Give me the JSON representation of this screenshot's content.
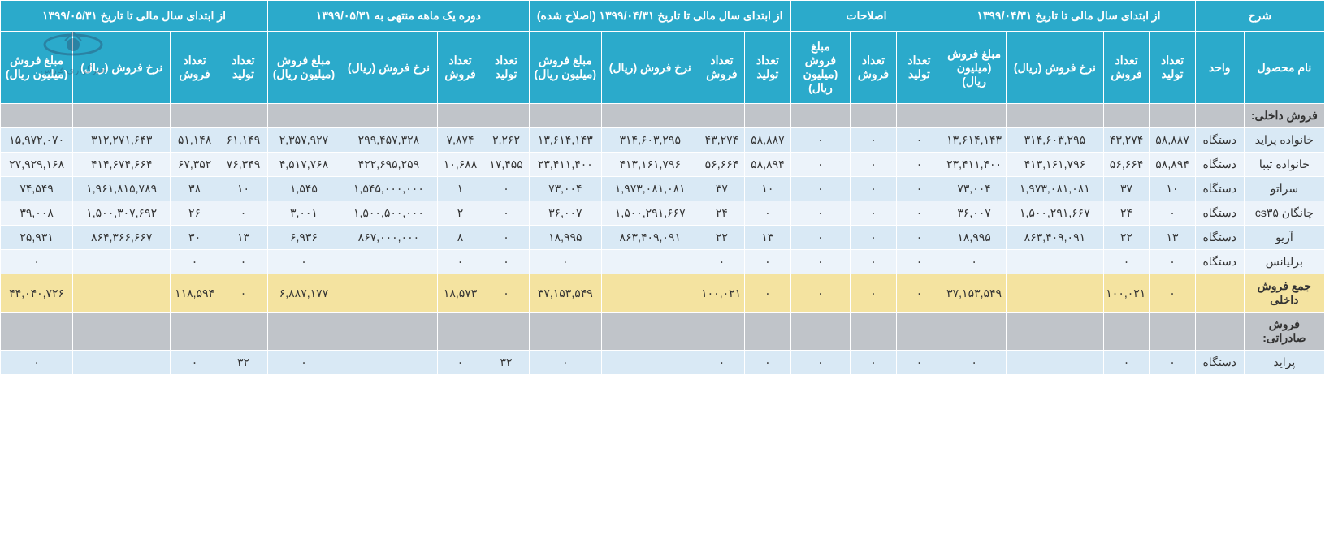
{
  "colors": {
    "header_bg": "#2baacb",
    "header_text": "#ffffff",
    "section_bg": "#c0c4c9",
    "row_light": "#d9e9f5",
    "row_lighter": "#ecf3fa",
    "total_bg": "#f4e3a0",
    "border": "#ffffff",
    "text": "#333333"
  },
  "header_groups": [
    {
      "label": "شرح",
      "span": 2
    },
    {
      "label": "از ابتدای سال مالی تا تاریخ ۱۳۹۹/۰۴/۳۱",
      "span": 4
    },
    {
      "label": "اصلاحات",
      "span": 3
    },
    {
      "label": "از ابتدای سال مالی تا تاریخ ۱۳۹۹/۰۴/۳۱ (اصلاح شده)",
      "span": 4
    },
    {
      "label": "دوره یک ماهه منتهی به ۱۳۹۹/۰۵/۳۱",
      "span": 4
    },
    {
      "label": "از ابتدای سال مالی تا تاریخ ۱۳۹۹/۰۵/۳۱",
      "span": 4
    }
  ],
  "sub_headers": [
    "نام محصول",
    "واحد",
    "تعداد تولید",
    "تعداد فروش",
    "نرخ فروش (ریال)",
    "مبلغ فروش (میلیون ریال)",
    "تعداد تولید",
    "تعداد فروش",
    "مبلغ فروش (میلیون ریال)",
    "تعداد تولید",
    "تعداد فروش",
    "نرخ فروش (ریال)",
    "مبلغ فروش (میلیون ریال)",
    "تعداد تولید",
    "تعداد فروش",
    "نرخ فروش (ریال)",
    "مبلغ فروش (میلیون ریال)",
    "تعداد تولید",
    "تعداد فروش",
    "نرخ فروش (ریال)",
    "مبلغ فروش (میلیون ریال)"
  ],
  "section1_label": "فروش داخلی:",
  "rows": [
    {
      "class": "row-light",
      "cells": [
        "خانواده پراید",
        "دستگاه",
        "۵۸,۸۸۷",
        "۴۳,۲۷۴",
        "۳۱۴,۶۰۳,۲۹۵",
        "۱۳,۶۱۴,۱۴۳",
        "۰",
        "۰",
        "۰",
        "۵۸,۸۸۷",
        "۴۳,۲۷۴",
        "۳۱۴,۶۰۳,۲۹۵",
        "۱۳,۶۱۴,۱۴۳",
        "۲,۲۶۲",
        "۷,۸۷۴",
        "۲۹۹,۴۵۷,۳۲۸",
        "۲,۳۵۷,۹۲۷",
        "۶۱,۱۴۹",
        "۵۱,۱۴۸",
        "۳۱۲,۲۷۱,۶۴۳",
        "۱۵,۹۷۲,۰۷۰"
      ]
    },
    {
      "class": "row-lighter",
      "cells": [
        "خانواده تیبا",
        "دستگاه",
        "۵۸,۸۹۴",
        "۵۶,۶۶۴",
        "۴۱۳,۱۶۱,۷۹۶",
        "۲۳,۴۱۱,۴۰۰",
        "۰",
        "۰",
        "۰",
        "۵۸,۸۹۴",
        "۵۶,۶۶۴",
        "۴۱۳,۱۶۱,۷۹۶",
        "۲۳,۴۱۱,۴۰۰",
        "۱۷,۴۵۵",
        "۱۰,۶۸۸",
        "۴۲۲,۶۹۵,۲۵۹",
        "۴,۵۱۷,۷۶۸",
        "۷۶,۳۴۹",
        "۶۷,۳۵۲",
        "۴۱۴,۶۷۴,۶۶۴",
        "۲۷,۹۲۹,۱۶۸"
      ]
    },
    {
      "class": "row-light",
      "cells": [
        "سراتو",
        "دستگاه",
        "۱۰",
        "۳۷",
        "۱,۹۷۳,۰۸۱,۰۸۱",
        "۷۳,۰۰۴",
        "۰",
        "۰",
        "۰",
        "۱۰",
        "۳۷",
        "۱,۹۷۳,۰۸۱,۰۸۱",
        "۷۳,۰۰۴",
        "۰",
        "۱",
        "۱,۵۴۵,۰۰۰,۰۰۰",
        "۱,۵۴۵",
        "۱۰",
        "۳۸",
        "۱,۹۶۱,۸۱۵,۷۸۹",
        "۷۴,۵۴۹"
      ]
    },
    {
      "class": "row-lighter",
      "cells": [
        "چانگان cs۳۵",
        "دستگاه",
        "۰",
        "۲۴",
        "۱,۵۰۰,۲۹۱,۶۶۷",
        "۳۶,۰۰۷",
        "۰",
        "۰",
        "۰",
        "۰",
        "۲۴",
        "۱,۵۰۰,۲۹۱,۶۶۷",
        "۳۶,۰۰۷",
        "۰",
        "۲",
        "۱,۵۰۰,۵۰۰,۰۰۰",
        "۳,۰۰۱",
        "۰",
        "۲۶",
        "۱,۵۰۰,۳۰۷,۶۹۲",
        "۳۹,۰۰۸"
      ]
    },
    {
      "class": "row-light",
      "cells": [
        "آریو",
        "دستگاه",
        "۱۳",
        "۲۲",
        "۸۶۳,۴۰۹,۰۹۱",
        "۱۸,۹۹۵",
        "۰",
        "۰",
        "۰",
        "۱۳",
        "۲۲",
        "۸۶۳,۴۰۹,۰۹۱",
        "۱۸,۹۹۵",
        "۰",
        "۸",
        "۸۶۷,۰۰۰,۰۰۰",
        "۶,۹۳۶",
        "۱۳",
        "۳۰",
        "۸۶۴,۳۶۶,۶۶۷",
        "۲۵,۹۳۱"
      ]
    },
    {
      "class": "row-lighter",
      "cells": [
        "برلیانس",
        "دستگاه",
        "۰",
        "۰",
        "",
        "۰",
        "۰",
        "۰",
        "۰",
        "۰",
        "۰",
        "",
        "۰",
        "۰",
        "۰",
        "",
        "۰",
        "۰",
        "۰",
        "",
        "۰"
      ]
    }
  ],
  "total_row": [
    "جمع فروش داخلی",
    "",
    "۰",
    "۱۰۰,۰۲۱",
    "",
    "۳۷,۱۵۳,۵۴۹",
    "۰",
    "۰",
    "۰",
    "۰",
    "۱۰۰,۰۲۱",
    "",
    "۳۷,۱۵۳,۵۴۹",
    "۰",
    "۱۸,۵۷۳",
    "",
    "۶,۸۸۷,۱۷۷",
    "۰",
    "۱۱۸,۵۹۴",
    "",
    "۴۴,۰۴۰,۷۲۶"
  ],
  "section2_label": "فروش صادراتی:",
  "export_row": [
    "پراید",
    "دستگاه",
    "۰",
    "۰",
    "",
    "۰",
    "۰",
    "۰",
    "۰",
    "۰",
    "۰",
    "",
    "۰",
    "۳۲",
    "۰",
    "",
    "۰",
    "۳۲",
    "۰",
    "",
    "۰"
  ],
  "watermark_text": "خبرگزاری فارس"
}
